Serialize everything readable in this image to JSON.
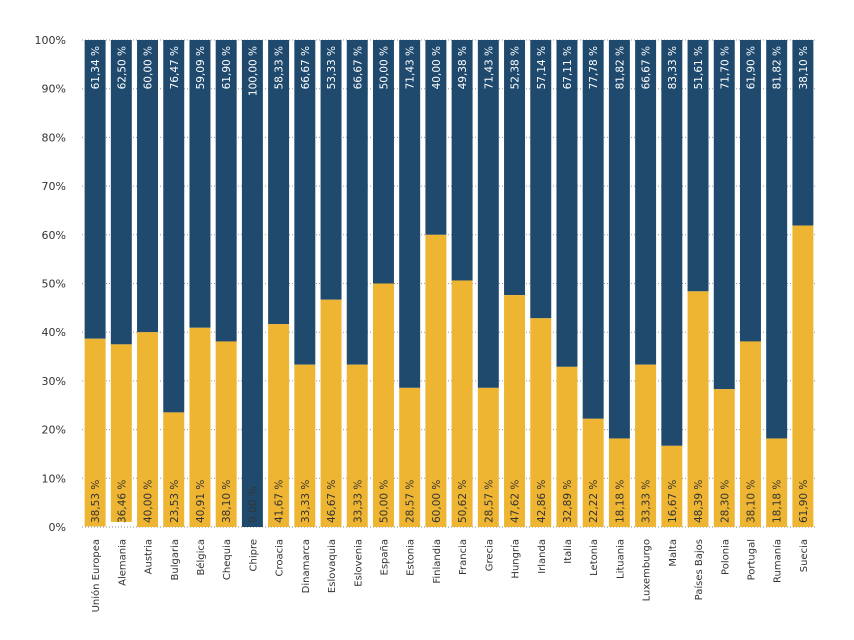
{
  "chart_data": {
    "type": "bar",
    "stacked": true,
    "percent": true,
    "categories": [
      "Unión Europea",
      "Alemania",
      "Austria",
      "Bulgaria",
      "Bélgica",
      "Chequia",
      "Chipre",
      "Croacia",
      "Dinamarca",
      "Eslovaquia",
      "Eslovenia",
      "España",
      "Estonia",
      "Finlandia",
      "Francia",
      "Grecia",
      "Hungría",
      "Irlanda",
      "Italia",
      "Letonia",
      "Lituania",
      "Luxemburgo",
      "Malta",
      "Países Bajos",
      "Polonia",
      "Portugal",
      "Rumanía",
      "Suecia"
    ],
    "series": [
      {
        "color": "#eeb533",
        "position": "bottom",
        "values": [
          38.53,
          36.46,
          40.0,
          23.53,
          40.91,
          38.1,
          0.0,
          41.67,
          33.33,
          46.67,
          33.33,
          50.0,
          28.57,
          60.0,
          50.62,
          28.57,
          47.62,
          42.86,
          32.89,
          22.22,
          18.18,
          33.33,
          16.67,
          48.39,
          28.3,
          38.1,
          18.18,
          61.9
        ],
        "labels": [
          "38,53 %",
          "36,46 %",
          "40,00 %",
          "23,53 %",
          "40,91 %",
          "38,10 %",
          "0,00 %",
          "41,67 %",
          "33,33 %",
          "46,67 %",
          "33,33 %",
          "50,00 %",
          "28,57 %",
          "60,00 %",
          "50,62 %",
          "28,57 %",
          "47,62 %",
          "42,86 %",
          "32,89 %",
          "22,22 %",
          "18,18 %",
          "33,33 %",
          "16,67 %",
          "48,39 %",
          "28,30 %",
          "38,10 %",
          "18,18 %",
          "61,90 %"
        ]
      },
      {
        "color": "#1f4a6e",
        "position": "top",
        "values": [
          61.34,
          62.5,
          60.0,
          76.47,
          59.09,
          61.9,
          100.0,
          58.33,
          66.67,
          53.33,
          66.67,
          50.0,
          71.43,
          40.0,
          49.38,
          71.43,
          52.38,
          57.14,
          67.11,
          77.78,
          81.82,
          66.67,
          83.33,
          51.61,
          71.7,
          61.9,
          81.82,
          38.1
        ],
        "labels": [
          "61,34 %",
          "62,50 %",
          "60,00 %",
          "76,47 %",
          "59,09 %",
          "61,90 %",
          "100,00 %",
          "58,33 %",
          "66,67 %",
          "53,33 %",
          "66,67 %",
          "50,00 %",
          "71,43 %",
          "40,00 %",
          "49,38 %",
          "71,43 %",
          "52,38 %",
          "57,14 %",
          "67,11 %",
          "77,78 %",
          "81,82 %",
          "66,67 %",
          "83,33 %",
          "51,61 %",
          "71,70 %",
          "61,90 %",
          "81,82 %",
          "38,10 %"
        ]
      }
    ],
    "ylim": [
      0,
      100
    ],
    "yticks": [
      "0%",
      "10%",
      "20%",
      "30%",
      "40%",
      "50%",
      "60%",
      "70%",
      "80%",
      "90%",
      "100%"
    ],
    "grid": true,
    "legend": "none"
  }
}
